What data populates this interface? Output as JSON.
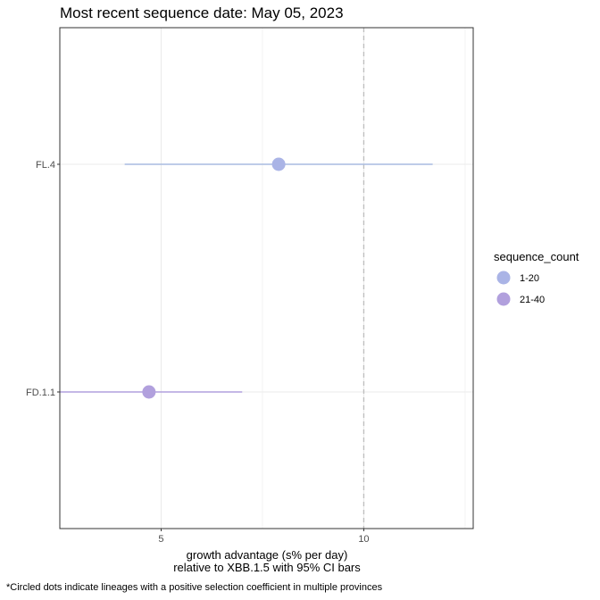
{
  "chart_data": {
    "type": "scatter",
    "title": "Most recent sequence date: May 05, 2023",
    "xlabel": [
      "growth advantage (s% per day)",
      "relative to  XBB.1.5  with 95% CI bars"
    ],
    "ylabel": "",
    "xlim": [
      2.5,
      12.7
    ],
    "x_ticks": [
      5,
      10
    ],
    "x_minor_ticks": [
      2.5,
      7.5,
      12.5
    ],
    "reference_line_x": 10,
    "categories": [
      "FL.4",
      "FD.1.1"
    ],
    "points": [
      {
        "lineage": "FL.4",
        "value": 7.9,
        "ci_low": 4.1,
        "ci_high": 11.7,
        "sequence_count": "1-20"
      },
      {
        "lineage": "FD.1.1",
        "value": 4.7,
        "ci_low": 2.5,
        "ci_high": 7.0,
        "sequence_count": "21-40"
      }
    ],
    "legend": {
      "title": "sequence_count",
      "placement": "right",
      "items": [
        {
          "label": "1-20",
          "color": "#aab4e6"
        },
        {
          "label": "21-40",
          "color": "#b1a0dd"
        }
      ]
    },
    "grid": true,
    "caption": "*Circled dots indicate lineages with a positive selection coefficient in multiple provinces"
  },
  "colors": {
    "ci_line_1_20": "#a9bce0",
    "ci_line_21_40": "#b1a0dd",
    "reference_line": "#bdbdbd",
    "grid": "#ebebeb",
    "panel_border": "#333333"
  }
}
